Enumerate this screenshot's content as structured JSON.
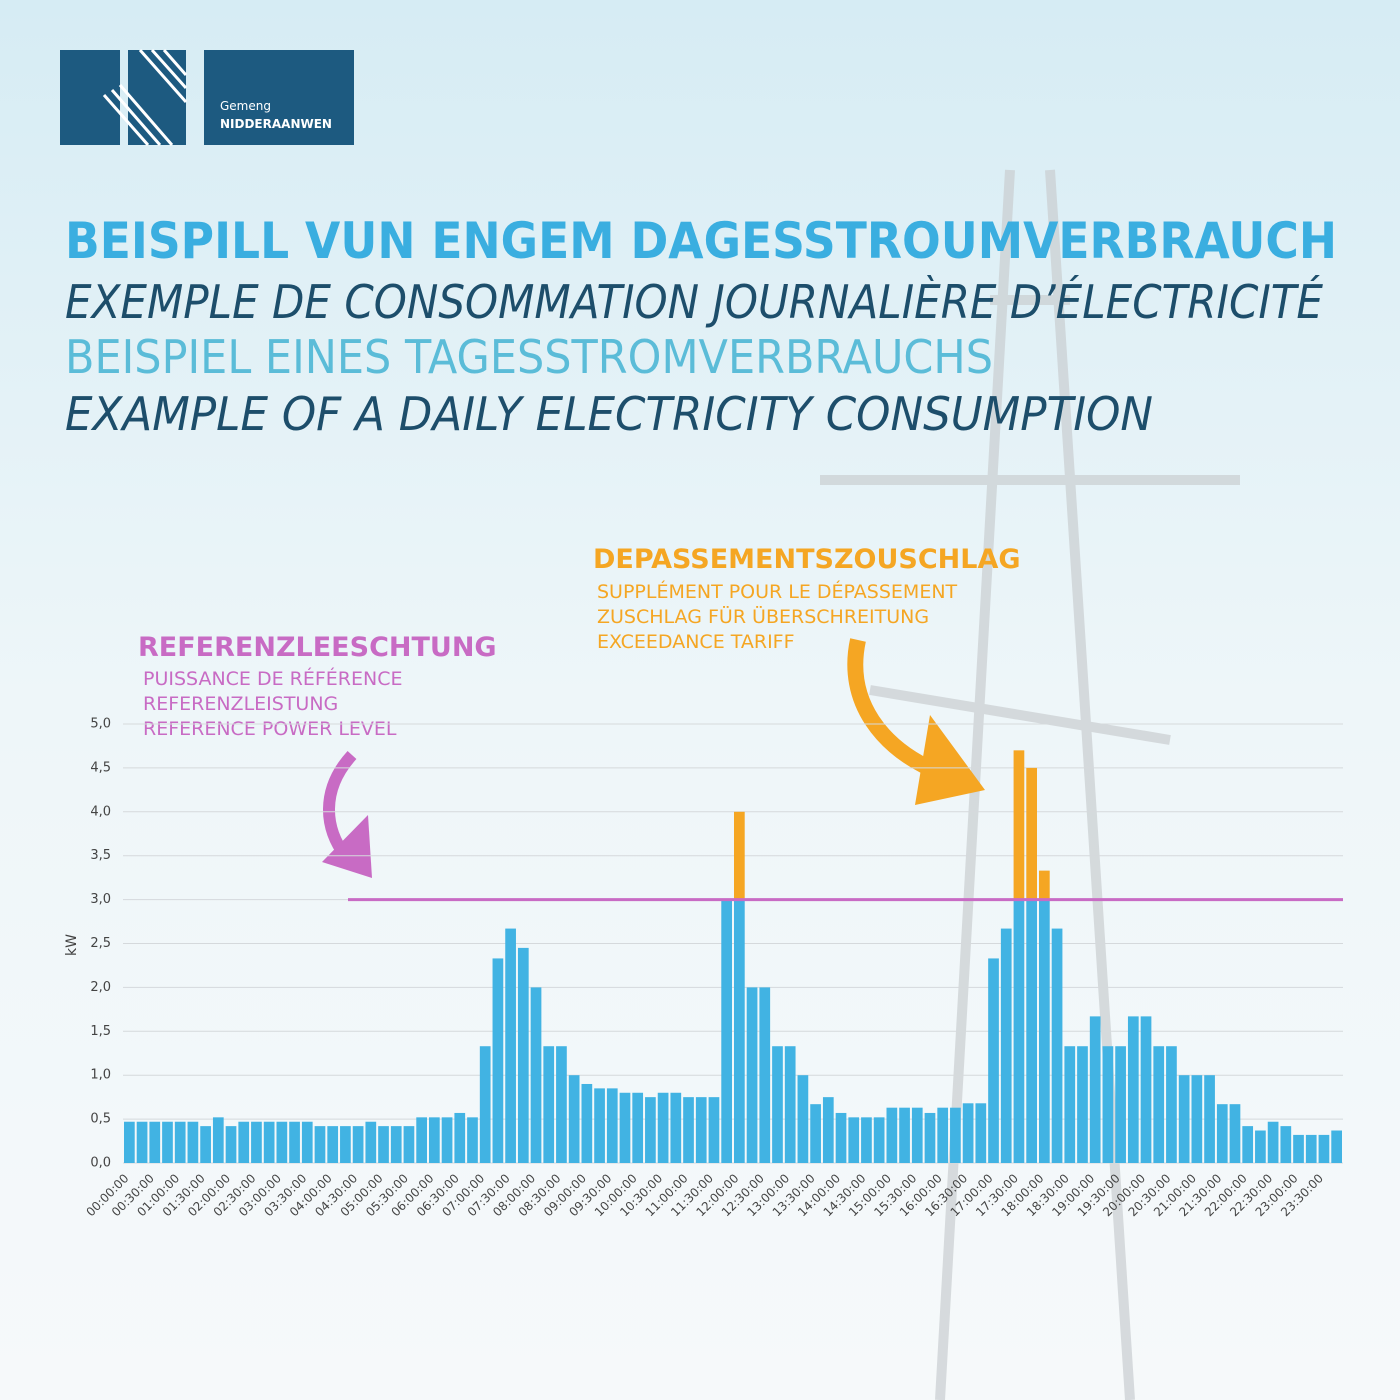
{
  "header": {
    "logo_line1": "Gemeng",
    "logo_line2": "NIDDERAANWEN"
  },
  "titles": [
    "BEISPILL VUN ENGEM DAGESSTROUMVERBRAUCH",
    "EXEMPLE DE CONSOMMATION JOURNALIÈRE D’ÉLECTRICITÉ",
    "BEISPIEL EINES TAGESSTROMVERBRAUCHS",
    "EXAMPLE OF A DAILY ELECTRICITY CONSUMPTION"
  ],
  "chart_data": {
    "type": "stacked_bar",
    "y_label": "kW",
    "annotations": {
      "reference": [
        "REFERENZLEESCHTUNG",
        "PUISSANCE DE RÉFÉRENCE",
        "REFERENZLEISTUNG",
        "REFERENCE POWER LEVEL"
      ],
      "exceedance": [
        "DEPASSEMENTSZOUSCHLAG",
        "SUPPLÉMENT POUR LE DÉPASSEMENT",
        "ZUSCHLAG FÜR ÜBERSCHREITUNG",
        "EXCEEDANCE TARIFF"
      ]
    },
    "reference_level": 3.0,
    "reference_color": "#c86bc4",
    "categories": [
      "00:00:00",
      null,
      "00:30:00",
      null,
      "01:00:00",
      null,
      "01:30:00",
      null,
      "02:00:00",
      null,
      "02:30:00",
      null,
      "03:00:00",
      null,
      "03:30:00",
      null,
      "04:00:00",
      null,
      "04:30:00",
      null,
      "05:00:00",
      null,
      "05:30:00",
      null,
      "06:00:00",
      null,
      "06:30:00",
      null,
      "07:00:00",
      null,
      "07:30:00",
      null,
      "08:00:00",
      null,
      "08:30:00",
      null,
      "09:00:00",
      null,
      "09:30:00",
      null,
      "10:00:00",
      null,
      "10:30:00",
      null,
      "11:00:00",
      null,
      "11:30:00",
      null,
      "12:00:00",
      null,
      "12:30:00",
      null,
      "13:00:00",
      null,
      "13:30:00",
      null,
      "14:00:00",
      null,
      "14:30:00",
      null,
      "15:00:00",
      null,
      "15:30:00",
      null,
      "16:00:00",
      null,
      "16:30:00",
      null,
      "17:00:00",
      null,
      "17:30:00",
      null,
      "18:00:00",
      null,
      "18:30:00",
      null,
      "19:00:00",
      null,
      "19:30:00",
      null,
      "20:00:00",
      null,
      "20:30:00",
      null,
      "21:00:00",
      null,
      "21:30:00",
      null,
      "22:00:00",
      null,
      "22:30:00",
      null,
      "23:00:00",
      null,
      "23:30:00",
      null
    ],
    "series": [
      {
        "color": "#41b3e3",
        "values": [
          0.47,
          0.47,
          0.47,
          0.47,
          0.47,
          0.47,
          0.42,
          0.52,
          0.42,
          0.47,
          0.47,
          0.47,
          0.47,
          0.47,
          0.47,
          0.42,
          0.42,
          0.42,
          0.42,
          0.47,
          0.42,
          0.42,
          0.42,
          0.52,
          0.52,
          0.52,
          0.57,
          0.52,
          1.33,
          2.33,
          2.67,
          2.45,
          2.0,
          1.33,
          1.33,
          1.0,
          0.9,
          0.85,
          0.85,
          0.8,
          0.8,
          0.75,
          0.8,
          0.8,
          0.75,
          0.75,
          0.75,
          3.0,
          3.0,
          2.0,
          2.0,
          1.33,
          1.33,
          1.0,
          0.67,
          0.75,
          0.57,
          0.52,
          0.52,
          0.52,
          0.63,
          0.63,
          0.63,
          0.57,
          0.63,
          0.63,
          0.68,
          0.68,
          2.33,
          2.67,
          3.0,
          3.0,
          3.0,
          2.67,
          1.33,
          1.33,
          1.67,
          1.33,
          1.33,
          1.67,
          1.67,
          1.33,
          1.33,
          1.0,
          1.0,
          1.0,
          0.67,
          0.67,
          0.42,
          0.37,
          0.47,
          0.42,
          0.32,
          0.32,
          0.32,
          0.37
        ]
      },
      {
        "color": "#f5a623",
        "values": [
          0,
          0,
          0,
          0,
          0,
          0,
          0,
          0,
          0,
          0,
          0,
          0,
          0,
          0,
          0,
          0,
          0,
          0,
          0,
          0,
          0,
          0,
          0,
          0,
          0,
          0,
          0,
          0,
          0,
          0,
          0,
          0,
          0,
          0,
          0,
          0,
          0,
          0,
          0,
          0,
          0,
          0,
          0,
          0,
          0,
          0,
          0,
          0,
          1.0,
          0,
          0,
          0,
          0,
          0,
          0,
          0,
          0,
          0,
          0,
          0,
          0,
          0,
          0,
          0,
          0,
          0,
          0,
          0,
          0,
          0,
          1.7,
          1.5,
          0.33,
          0,
          0,
          0,
          0,
          0,
          0,
          0,
          0,
          0,
          0,
          0,
          0,
          0,
          0,
          0,
          0,
          0,
          0,
          0,
          0,
          0,
          0,
          0
        ]
      }
    ],
    "ylim": [
      0,
      5
    ],
    "yticks": [
      {
        "value": 0,
        "label": "0,0"
      },
      {
        "value": 0.5,
        "label": "0,5"
      },
      {
        "value": 1,
        "label": "1,0"
      },
      {
        "value": 1.5,
        "label": "1,5"
      },
      {
        "value": 2,
        "label": "2,0"
      },
      {
        "value": 2.5,
        "label": "2,5"
      },
      {
        "value": 3,
        "label": "3,0"
      },
      {
        "value": 3.5,
        "label": "3,5"
      },
      {
        "value": 4,
        "label": "4,0"
      },
      {
        "value": 4.5,
        "label": "4,5"
      },
      {
        "value": 5,
        "label": "5,0"
      }
    ],
    "grid": true
  }
}
